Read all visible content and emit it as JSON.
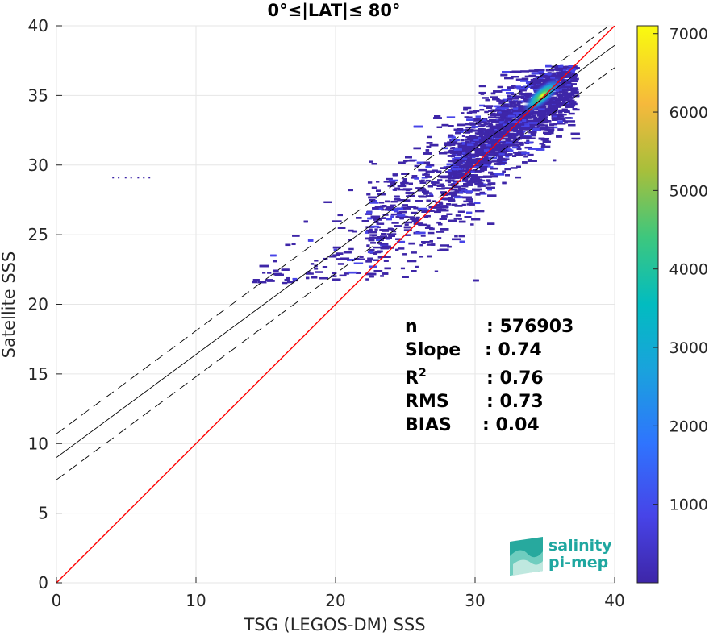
{
  "chart_data": {
    "type": "scatter",
    "subtype": "density-scatter",
    "title": "0°≤|LAT|≤ 80°",
    "xlabel": "TSG (LEGOS-DM) SSS",
    "ylabel": "Satellite SSS",
    "xlim": [
      0,
      40
    ],
    "ylim": [
      0,
      40
    ],
    "xticks": [
      0,
      10,
      20,
      30,
      40
    ],
    "yticks": [
      0,
      5,
      10,
      15,
      20,
      25,
      30,
      35,
      40
    ],
    "grid": true,
    "colorbar": {
      "range": [
        0,
        7100
      ],
      "ticks": [
        1000,
        2000,
        3000,
        4000,
        5000,
        6000,
        7000
      ],
      "colormap": "parula"
    },
    "lines": [
      {
        "name": "one-to-one",
        "style": "solid",
        "color": "#ff0000",
        "x": [
          0,
          40
        ],
        "y": [
          0,
          40
        ]
      },
      {
        "name": "regression fit",
        "style": "solid",
        "color": "#000000",
        "x": [
          0,
          40
        ],
        "y": [
          9.0,
          38.6
        ]
      },
      {
        "name": "upper bound",
        "style": "dashed",
        "color": "#000000",
        "x": [
          0,
          40
        ],
        "y": [
          10.7,
          40.3
        ]
      },
      {
        "name": "lower bound",
        "style": "dashed",
        "color": "#000000",
        "x": [
          0,
          40
        ],
        "y": [
          7.4,
          37.0
        ]
      }
    ],
    "isolated_points": [
      {
        "x": 4.0,
        "y": 29.1
      },
      {
        "x": 4.4,
        "y": 29.1
      },
      {
        "x": 4.9,
        "y": 29.1
      },
      {
        "x": 5.3,
        "y": 29.1
      },
      {
        "x": 5.8,
        "y": 29.1
      },
      {
        "x": 6.2,
        "y": 29.1
      },
      {
        "x": 6.6,
        "y": 29.1
      }
    ],
    "density_summary": "main point cloud between x≈14–37 and y≈21.5–37, densest near x≈35, y≈35",
    "stats": [
      {
        "label": "n",
        "value": ": 576903"
      },
      {
        "label": "Slope",
        "value": ": 0.74"
      },
      {
        "label": "R",
        "sup": "2",
        "value": ": 0.76"
      },
      {
        "label": "RMS",
        "value": ": 0.73"
      },
      {
        "label": "BIAS",
        "value": ": 0.04"
      }
    ]
  },
  "logo": {
    "line1": "salinity",
    "line2": "pi-mep"
  },
  "colors": {
    "one_to_one": "#ff0000",
    "fit": "#000000",
    "low_density": "#3e26a8",
    "high_density": "#f9fb0e",
    "logo": "#1fa7a0"
  }
}
